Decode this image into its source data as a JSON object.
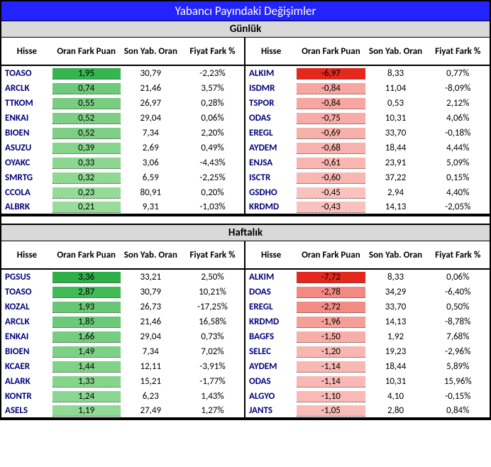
{
  "title": "Yabancı Payındaki Değişimler",
  "sections": [
    {
      "title": "Günlük",
      "positive": {
        "headers": {
          "hisse": "Hisse",
          "oran": "Oran Fark Puan",
          "son": "Son Yab. Oran",
          "fiyat": "Fiyat Fark %"
        },
        "rows": [
          {
            "hisse": "TOASO",
            "oran": "1,95",
            "son": "30,79",
            "fiyat": "-2,23%",
            "bg": "#35b451"
          },
          {
            "hisse": "ARCLK",
            "oran": "0,74",
            "son": "21,46",
            "fiyat": "3,57%",
            "bg": "#6ec97a"
          },
          {
            "hisse": "TTKOM",
            "oran": "0,55",
            "son": "26,97",
            "fiyat": "0,28%",
            "bg": "#79cd81"
          },
          {
            "hisse": "ENKAI",
            "oran": "0,52",
            "son": "29,04",
            "fiyat": "0,06%",
            "bg": "#7ecf85"
          },
          {
            "hisse": "BIOEN",
            "oran": "0,52",
            "son": "7,34",
            "fiyat": "2,20%",
            "bg": "#7ecf85"
          },
          {
            "hisse": "ASUZU",
            "oran": "0,39",
            "son": "2,69",
            "fiyat": "0,49%",
            "bg": "#86d38c"
          },
          {
            "hisse": "OYAKC",
            "oran": "0,33",
            "son": "3,06",
            "fiyat": "-4,43%",
            "bg": "#8cd691"
          },
          {
            "hisse": "SMRTG",
            "oran": "0,32",
            "son": "6,59",
            "fiyat": "-2,25%",
            "bg": "#8ed892"
          },
          {
            "hisse": "CCOLA",
            "oran": "0,23",
            "son": "80,91",
            "fiyat": "0,20%",
            "bg": "#95db98"
          },
          {
            "hisse": "ALBRK",
            "oran": "0,21",
            "son": "9,31",
            "fiyat": "-1,03%",
            "bg": "#97dc9a"
          }
        ]
      },
      "negative": {
        "headers": {
          "hisse": "Hisse",
          "oran": "Oran Fark Puan",
          "son": "Son Yab. Oran",
          "fiyat": "Fiyat Fark %"
        },
        "rows": [
          {
            "hisse": "ALKIM",
            "oran": "-6,97",
            "son": "8,33",
            "fiyat": "0,77%",
            "bg": "#e4281d"
          },
          {
            "hisse": "ISDMR",
            "oran": "-0,84",
            "son": "11,04",
            "fiyat": "-8,09%",
            "bg": "#f7a6a1"
          },
          {
            "hisse": "TSPOR",
            "oran": "-0,84",
            "son": "0,53",
            "fiyat": "2,12%",
            "bg": "#f7a6a1"
          },
          {
            "hisse": "ODAS",
            "oran": "-0,75",
            "son": "10,31",
            "fiyat": "4,06%",
            "bg": "#f8aca7"
          },
          {
            "hisse": "EREGL",
            "oran": "-0,69",
            "son": "33,70",
            "fiyat": "-0,18%",
            "bg": "#f8b0ab"
          },
          {
            "hisse": "AYDEM",
            "oran": "-0,68",
            "son": "18,44",
            "fiyat": "4,44%",
            "bg": "#f8b1ac"
          },
          {
            "hisse": "ENJSA",
            "oran": "-0,61",
            "son": "23,91",
            "fiyat": "5,09%",
            "bg": "#f9b6b1"
          },
          {
            "hisse": "ISCTR",
            "oran": "-0,60",
            "son": "37,22",
            "fiyat": "0,15%",
            "bg": "#f9b7b2"
          },
          {
            "hisse": "GSDHO",
            "oran": "-0,45",
            "son": "2,94",
            "fiyat": "4,40%",
            "bg": "#fac1bd"
          },
          {
            "hisse": "KRDMD",
            "oran": "-0,43",
            "son": "14,13",
            "fiyat": "-2,05%",
            "bg": "#fac2be"
          }
        ]
      }
    },
    {
      "title": "Haftalık",
      "positive": {
        "headers": {
          "hisse": "Hisse",
          "oran": "Oran Fark Puan",
          "son": "Son Yab. Oran",
          "fiyat": "Fiyat Fark %"
        },
        "rows": [
          {
            "hisse": "PGSUS",
            "oran": "3,36",
            "son": "33,21",
            "fiyat": "2,50%",
            "bg": "#2eaf4a"
          },
          {
            "hisse": "TOASO",
            "oran": "2,87",
            "son": "30,79",
            "fiyat": "10,21%",
            "bg": "#42ba58"
          },
          {
            "hisse": "KOZAL",
            "oran": "1,93",
            "son": "26,73",
            "fiyat": "-17,25%",
            "bg": "#68c774"
          },
          {
            "hisse": "ARCLK",
            "oran": "1,85",
            "son": "21,46",
            "fiyat": "16,58%",
            "bg": "#6cc977"
          },
          {
            "hisse": "ENKAI",
            "oran": "1,66",
            "son": "29,04",
            "fiyat": "0,73%",
            "bg": "#75cd7f"
          },
          {
            "hisse": "BIOEN",
            "oran": "1,49",
            "son": "7,34",
            "fiyat": "7,02%",
            "bg": "#7dd186"
          },
          {
            "hisse": "KCAER",
            "oran": "1,44",
            "son": "12,11",
            "fiyat": "-3,91%",
            "bg": "#80d288"
          },
          {
            "hisse": "ALARK",
            "oran": "1,33",
            "son": "15,21",
            "fiyat": "-1,77%",
            "bg": "#86d58d"
          },
          {
            "hisse": "KONTR",
            "oran": "1,24",
            "son": "6,23",
            "fiyat": "1,43%",
            "bg": "#8bd791"
          },
          {
            "hisse": "ASELS",
            "oran": "1,19",
            "son": "27,49",
            "fiyat": "1,27%",
            "bg": "#8ed993"
          }
        ]
      },
      "negative": {
        "headers": {
          "hisse": "Hisse",
          "oran": "Oran Fark Puan",
          "son": "Son Yab. Oran",
          "fiyat": "Fiyat Fark %"
        },
        "rows": [
          {
            "hisse": "ALKIM",
            "oran": "-7,72",
            "son": "8,33",
            "fiyat": "0,06%",
            "bg": "#e4281d"
          },
          {
            "hisse": "DOAS",
            "oran": "-2,78",
            "son": "34,29",
            "fiyat": "-6,40%",
            "bg": "#f28a83"
          },
          {
            "hisse": "EREGL",
            "oran": "-2,72",
            "son": "33,70",
            "fiyat": "0,50%",
            "bg": "#f28c85"
          },
          {
            "hisse": "KRDMD",
            "oran": "-1,96",
            "son": "14,13",
            "fiyat": "-8,78%",
            "bg": "#f59f99"
          },
          {
            "hisse": "BAGFS",
            "oran": "-1,50",
            "son": "1,92",
            "fiyat": "7,68%",
            "bg": "#f7ada8"
          },
          {
            "hisse": "SELEC",
            "oran": "-1,20",
            "son": "19,23",
            "fiyat": "-2,96%",
            "bg": "#f8b6b1"
          },
          {
            "hisse": "AYDEM",
            "oran": "-1,14",
            "son": "18,44",
            "fiyat": "5,89%",
            "bg": "#f9b8b3"
          },
          {
            "hisse": "ODAS",
            "oran": "-1,14",
            "son": "10,31",
            "fiyat": "15,96%",
            "bg": "#f9b8b3"
          },
          {
            "hisse": "ALGYO",
            "oran": "-1,10",
            "son": "4,10",
            "fiyat": "-0,15%",
            "bg": "#f9bab5"
          },
          {
            "hisse": "JANTS",
            "oran": "-1,05",
            "son": "2,80",
            "fiyat": "0,84%",
            "bg": "#f9bcb7"
          }
        ]
      }
    }
  ]
}
